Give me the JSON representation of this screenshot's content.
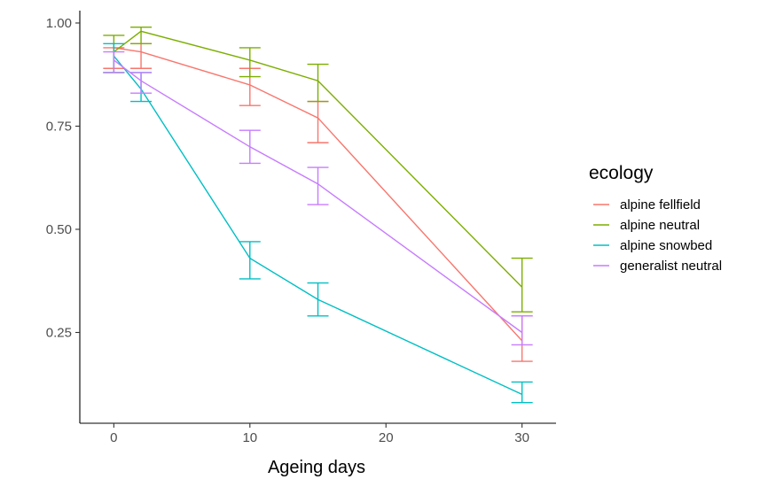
{
  "chart_data": {
    "type": "line",
    "title": "",
    "xlabel": "Ageing days",
    "ylabel": "",
    "xlim": [
      -2.5,
      32.5
    ],
    "ylim": [
      0.03,
      1.03
    ],
    "x_ticks": [
      0,
      10,
      20,
      30
    ],
    "x_tick_labels": [
      "0",
      "10",
      "20",
      "30"
    ],
    "y_ticks": [
      0.25,
      0.5,
      0.75,
      1.0
    ],
    "y_tick_labels": [
      "0.25",
      "0.50",
      "0.75",
      "1.00"
    ],
    "grid": false,
    "legend": {
      "title": "ecology",
      "placement": "right"
    },
    "series": [
      {
        "name": "alpine fellfield",
        "color": "#F8766D",
        "points": [
          {
            "x": 0,
            "y": 0.94,
            "lo": 0.89,
            "hi": 0.94
          },
          {
            "x": 2,
            "y": 0.93,
            "lo": 0.89,
            "hi": 0.95
          },
          {
            "x": 10,
            "y": 0.85,
            "lo": 0.8,
            "hi": 0.89
          },
          {
            "x": 15,
            "y": 0.77,
            "lo": 0.71,
            "hi": 0.81
          },
          {
            "x": 30,
            "y": 0.23,
            "lo": 0.18,
            "hi": 0.29
          }
        ]
      },
      {
        "name": "alpine neutral",
        "color": "#7CAE00",
        "points": [
          {
            "x": 0,
            "y": 0.93,
            "lo": 0.88,
            "hi": 0.97
          },
          {
            "x": 2,
            "y": 0.98,
            "lo": 0.95,
            "hi": 0.99
          },
          {
            "x": 10,
            "y": 0.91,
            "lo": 0.87,
            "hi": 0.94
          },
          {
            "x": 15,
            "y": 0.86,
            "lo": 0.81,
            "hi": 0.9
          },
          {
            "x": 30,
            "y": 0.36,
            "lo": 0.3,
            "hi": 0.43
          }
        ]
      },
      {
        "name": "alpine snowbed",
        "color": "#00BFC4",
        "points": [
          {
            "x": 0,
            "y": 0.92,
            "lo": 0.88,
            "hi": 0.95
          },
          {
            "x": 2,
            "y": 0.84,
            "lo": 0.81,
            "hi": 0.88
          },
          {
            "x": 10,
            "y": 0.43,
            "lo": 0.38,
            "hi": 0.47
          },
          {
            "x": 15,
            "y": 0.33,
            "lo": 0.29,
            "hi": 0.37
          },
          {
            "x": 30,
            "y": 0.1,
            "lo": 0.08,
            "hi": 0.13
          }
        ]
      },
      {
        "name": "generalist neutral",
        "color": "#C77CFF",
        "points": [
          {
            "x": 0,
            "y": 0.91,
            "lo": 0.88,
            "hi": 0.93
          },
          {
            "x": 2,
            "y": 0.86,
            "lo": 0.83,
            "hi": 0.88
          },
          {
            "x": 10,
            "y": 0.7,
            "lo": 0.66,
            "hi": 0.74
          },
          {
            "x": 15,
            "y": 0.61,
            "lo": 0.56,
            "hi": 0.65
          },
          {
            "x": 30,
            "y": 0.25,
            "lo": 0.22,
            "hi": 0.29
          }
        ]
      }
    ]
  }
}
